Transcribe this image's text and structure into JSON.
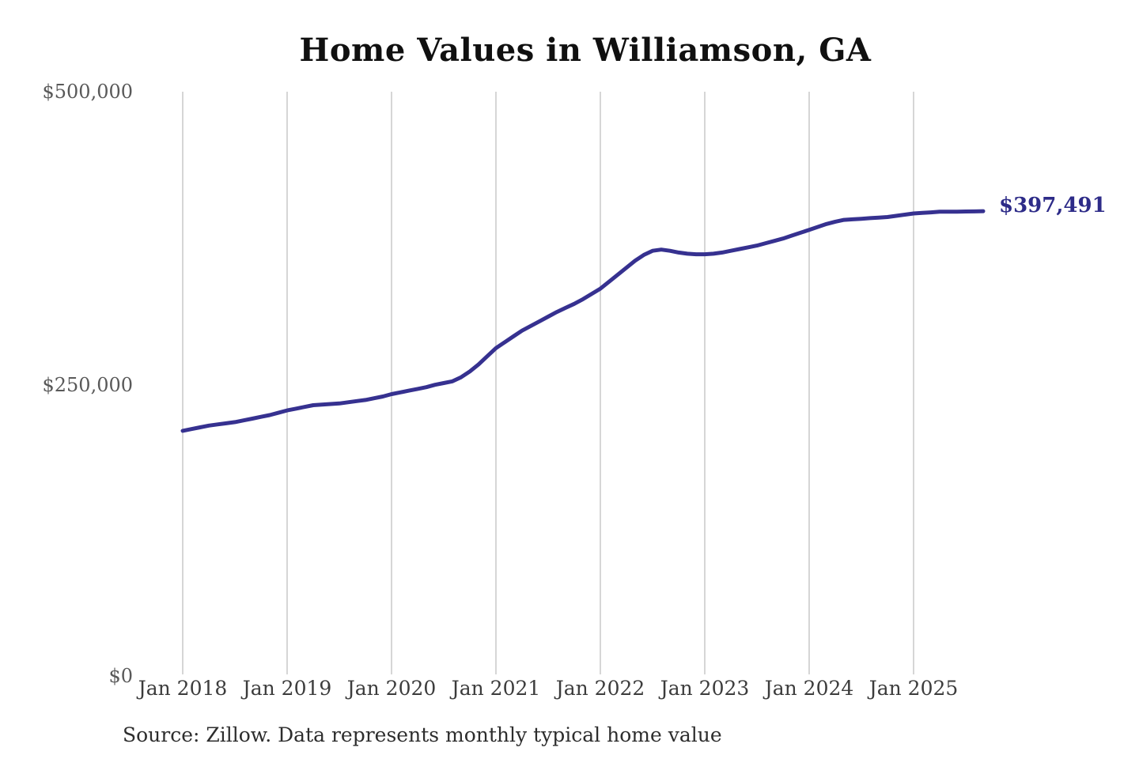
{
  "chart": {
    "title": "Home Values in Williamson, GA",
    "y_ticks": [
      "$500,000",
      "$250,000",
      "$0"
    ],
    "x_ticks": [
      "Jan 2018",
      "Jan 2019",
      "Jan 2020",
      "Jan 2021",
      "Jan 2022",
      "Jan 2023",
      "Jan 2024",
      "Jan 2025"
    ],
    "end_label": "$397,491",
    "source": "Source: Zillow. Data represents monthly typical home value"
  },
  "colors": {
    "line": "#363190",
    "annotation": "#2d2b88",
    "gridline": "#c9c9c9",
    "title": "#101010",
    "y_tick": "#595959",
    "x_tick": "#3c3c3c",
    "source": "#2d2d2d",
    "background": "#ffffff"
  },
  "chart_data": {
    "type": "line",
    "title": "Home Values in Williamson, GA",
    "xlabel": "",
    "ylabel": "",
    "ylim": [
      0,
      500000
    ],
    "y_tick_values": [
      0,
      250000,
      500000
    ],
    "x_tick_labels": [
      "Jan 2018",
      "Jan 2019",
      "Jan 2020",
      "Jan 2021",
      "Jan 2022",
      "Jan 2023",
      "Jan 2024",
      "Jan 2025"
    ],
    "grid": "vertical-only",
    "legend": "none",
    "series_name": "Typical home value (monthly)",
    "x": [
      "2018-01",
      "2018-02",
      "2018-03",
      "2018-04",
      "2018-05",
      "2018-06",
      "2018-07",
      "2018-08",
      "2018-09",
      "2018-10",
      "2018-11",
      "2018-12",
      "2019-01",
      "2019-02",
      "2019-03",
      "2019-04",
      "2019-05",
      "2019-06",
      "2019-07",
      "2019-08",
      "2019-09",
      "2019-10",
      "2019-11",
      "2019-12",
      "2020-01",
      "2020-02",
      "2020-03",
      "2020-04",
      "2020-05",
      "2020-06",
      "2020-07",
      "2020-08",
      "2020-09",
      "2020-10",
      "2020-11",
      "2020-12",
      "2021-01",
      "2021-02",
      "2021-03",
      "2021-04",
      "2021-05",
      "2021-06",
      "2021-07",
      "2021-08",
      "2021-09",
      "2021-10",
      "2021-11",
      "2021-12",
      "2022-01",
      "2022-02",
      "2022-03",
      "2022-04",
      "2022-05",
      "2022-06",
      "2022-07",
      "2022-08",
      "2022-09",
      "2022-10",
      "2022-11",
      "2022-12",
      "2023-01",
      "2023-02",
      "2023-03",
      "2023-04",
      "2023-05",
      "2023-06",
      "2023-07",
      "2023-08",
      "2023-09",
      "2023-10",
      "2023-11",
      "2023-12",
      "2024-01",
      "2024-02",
      "2024-03",
      "2024-04",
      "2024-05",
      "2024-06",
      "2024-07",
      "2024-08",
      "2024-09",
      "2024-10",
      "2024-11",
      "2024-12",
      "2025-01",
      "2025-02",
      "2025-03",
      "2025-04",
      "2025-05",
      "2025-06",
      "2025-07",
      "2025-08",
      "2025-09"
    ],
    "values": [
      209000,
      210500,
      212000,
      213500,
      214500,
      215500,
      216500,
      218000,
      219500,
      221000,
      222500,
      224500,
      226500,
      228000,
      229500,
      231000,
      231500,
      232000,
      232500,
      233500,
      234500,
      235500,
      237000,
      238500,
      240500,
      242000,
      243500,
      245000,
      246500,
      248500,
      250000,
      251500,
      255000,
      260000,
      266000,
      273000,
      280000,
      285000,
      290000,
      295000,
      299000,
      303000,
      307000,
      311000,
      314500,
      318000,
      322000,
      326500,
      331000,
      337000,
      343000,
      349000,
      355000,
      360000,
      363500,
      364500,
      363500,
      362000,
      361000,
      360500,
      360500,
      361000,
      362000,
      363500,
      365000,
      366500,
      368000,
      370000,
      372000,
      374000,
      376500,
      379000,
      381500,
      384000,
      386500,
      388500,
      390000,
      390500,
      391000,
      391500,
      392000,
      392500,
      393500,
      394500,
      395500,
      396000,
      396500,
      397000,
      397000,
      397000,
      397200,
      397300,
      397491
    ],
    "end_annotation": {
      "x": "2025-09",
      "value": 397491,
      "label": "$397,491"
    },
    "source": "Source: Zillow. Data represents monthly typical home value"
  }
}
